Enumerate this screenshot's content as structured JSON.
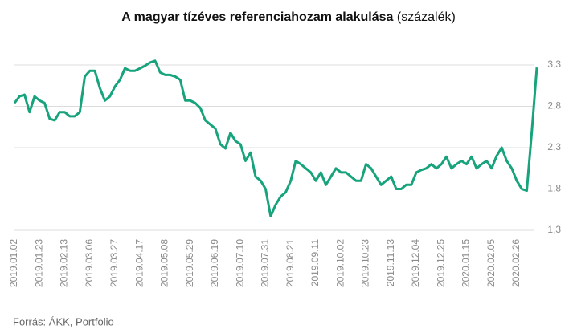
{
  "chart_data": {
    "type": "line",
    "title": "A magyar tízéves referenciahozam alakulása",
    "title_unit": "(százalék)",
    "source": "Forrás: ÁKK, Portfolio",
    "categories": [
      "2019.01.02",
      null,
      null,
      null,
      null,
      "2019.01.23",
      null,
      null,
      null,
      null,
      "2019.02.13",
      null,
      null,
      null,
      null,
      "2019.03.06",
      null,
      null,
      null,
      null,
      "2019.03.27",
      null,
      null,
      null,
      null,
      "2019.04.17",
      null,
      null,
      null,
      null,
      "2019.05.08",
      null,
      null,
      null,
      null,
      "2019.05.29",
      null,
      null,
      null,
      null,
      "2019.06.19",
      null,
      null,
      null,
      null,
      "2019.07.10",
      null,
      null,
      null,
      null,
      "2019.07.31",
      null,
      null,
      null,
      null,
      "2019.08.21",
      null,
      null,
      null,
      null,
      "2019.09.11",
      null,
      null,
      null,
      null,
      "2019.10.02",
      null,
      null,
      null,
      null,
      "2019.10.23",
      null,
      null,
      null,
      null,
      "2019.11.13",
      null,
      null,
      null,
      null,
      "2019.12.04",
      null,
      null,
      null,
      null,
      "2019.12.25",
      null,
      null,
      null,
      null,
      "2020.01.15",
      null,
      null,
      null,
      null,
      "2020.02.05",
      null,
      null,
      null,
      null,
      "2020.02.26",
      null,
      null,
      null,
      null
    ],
    "series": [
      {
        "color": "#17a37b",
        "values": [
          2.84,
          2.92,
          2.94,
          2.73,
          2.92,
          2.87,
          2.84,
          2.65,
          2.63,
          2.73,
          2.73,
          2.68,
          2.68,
          2.73,
          3.16,
          3.23,
          3.23,
          3.02,
          2.87,
          2.92,
          3.04,
          3.12,
          3.26,
          3.23,
          3.23,
          3.26,
          3.29,
          3.33,
          3.35,
          3.21,
          3.18,
          3.18,
          3.16,
          3.12,
          2.87,
          2.87,
          2.84,
          2.78,
          2.63,
          2.58,
          2.53,
          2.34,
          2.29,
          2.48,
          2.38,
          2.34,
          2.14,
          2.24,
          1.95,
          1.9,
          1.8,
          1.47,
          1.61,
          1.71,
          1.76,
          1.9,
          2.14,
          2.1,
          2.05,
          2.0,
          1.9,
          2.0,
          1.85,
          1.95,
          2.05,
          2.0,
          2.0,
          1.95,
          1.9,
          1.9,
          2.1,
          2.05,
          1.95,
          1.85,
          1.9,
          1.95,
          1.8,
          1.8,
          1.85,
          1.85,
          2.0,
          2.03,
          2.05,
          2.1,
          2.05,
          2.1,
          2.19,
          2.05,
          2.1,
          2.14,
          2.1,
          2.19,
          2.05,
          2.1,
          2.14,
          2.05,
          2.2,
          2.3,
          2.14,
          2.05,
          1.9,
          1.8,
          1.78,
          2.5,
          3.27
        ]
      }
    ],
    "ylim": [
      1.3,
      3.3
    ],
    "yticks": [
      {
        "value": 1.3,
        "label": "1,3"
      },
      {
        "value": 1.8,
        "label": "1,8"
      },
      {
        "value": 2.3,
        "label": "2,3"
      },
      {
        "value": 2.8,
        "label": "2,8"
      },
      {
        "value": 3.3,
        "label": "3,3"
      }
    ],
    "grid": true
  }
}
